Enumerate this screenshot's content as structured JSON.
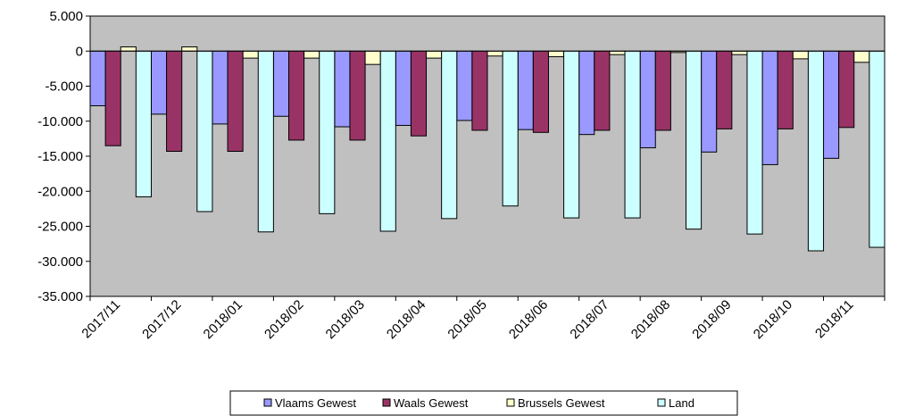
{
  "chart_data": {
    "type": "bar",
    "title": "",
    "xlabel": "",
    "ylabel": "",
    "categories": [
      "2017/11",
      "2017/12",
      "2018/01",
      "2018/02",
      "2018/03",
      "2018/04",
      "2018/05",
      "2018/06",
      "2018/07",
      "2018/08",
      "2018/09",
      "2018/10",
      "2018/11"
    ],
    "ylim": [
      -35000,
      5000
    ],
    "yticks": [
      5000,
      0,
      -5000,
      -10000,
      -15000,
      -20000,
      -25000,
      -30000,
      -35000
    ],
    "ytick_labels": [
      "5.000",
      "0",
      "-5.000",
      "-10.000",
      "-15.000",
      "-20.000",
      "-25.000",
      "-30.000",
      "-35.000"
    ],
    "grid": false,
    "plot_background": "#C0C0C0",
    "legend_position": "bottom",
    "series": [
      {
        "name": "Vlaams Gewest",
        "color": "#9999FF",
        "values": [
          -7800,
          -9000,
          -10400,
          -9300,
          -10800,
          -10600,
          -9900,
          -11200,
          -11900,
          -13800,
          -14400,
          -16200,
          -15300
        ]
      },
      {
        "name": "Waals Gewest",
        "color": "#993366",
        "values": [
          -13500,
          -14300,
          -14300,
          -12700,
          -12700,
          -12100,
          -11300,
          -11600,
          -11300,
          -11300,
          -11100,
          -11100,
          -10900
        ]
      },
      {
        "name": "Brussels Gewest",
        "color": "#FFFFCC",
        "values": [
          600,
          600,
          -1000,
          -1000,
          -1900,
          -1000,
          -700,
          -800,
          -500,
          -200,
          -500,
          -1100,
          -1600
        ]
      },
      {
        "name": "Land",
        "color": "#CCFFFF",
        "values": [
          -20800,
          -22900,
          -25800,
          -23200,
          -25700,
          -23900,
          -22100,
          -23800,
          -23800,
          -25400,
          -26100,
          -28500,
          -28000
        ]
      }
    ]
  }
}
